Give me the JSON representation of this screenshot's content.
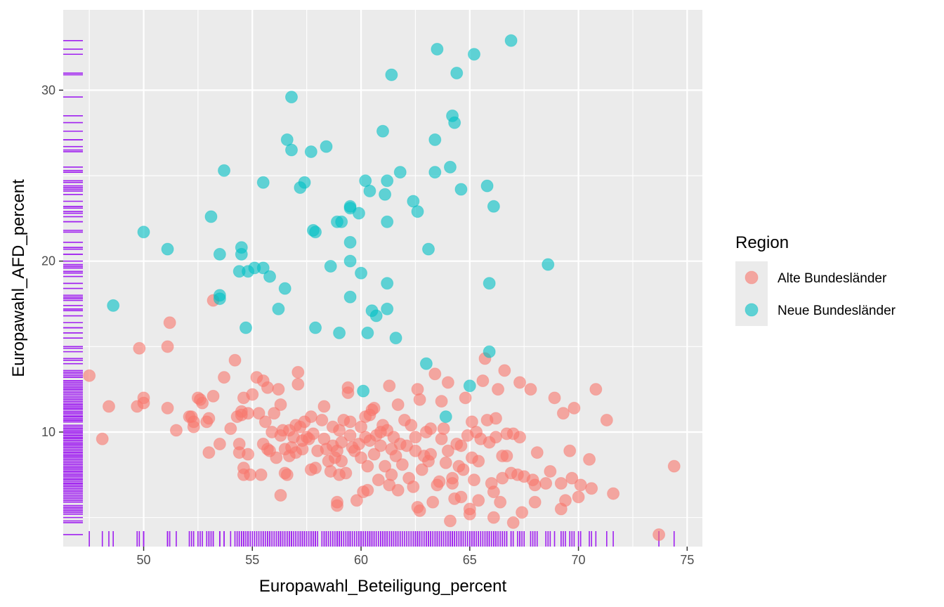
{
  "chart_data": {
    "type": "scatter",
    "xlabel": "Europawahl_Beteiligung_percent",
    "ylabel": "Europawahl_AFD_percent",
    "xlim": [
      46.3,
      75.7
    ],
    "ylim": [
      3.3,
      34.7
    ],
    "x_ticks": [
      50,
      55,
      60,
      65,
      70,
      75
    ],
    "y_ticks": [
      10,
      20,
      30
    ],
    "grid": true,
    "rug": true,
    "rug_color": "#a020f0",
    "panel_background": "#ebebeb",
    "legend": {
      "title": "Region",
      "position": "right"
    },
    "series": [
      {
        "name": "Alte Bundesländer",
        "color": "#f8766d",
        "points": [
          [
            47.5,
            13.3
          ],
          [
            48.1,
            9.6
          ],
          [
            48.4,
            11.5
          ],
          [
            49.8,
            14.9
          ],
          [
            49.7,
            11.5
          ],
          [
            50.0,
            11.7
          ],
          [
            50.0,
            12.0
          ],
          [
            51.1,
            11.4
          ],
          [
            51.1,
            15.0
          ],
          [
            51.2,
            16.4
          ],
          [
            51.5,
            10.1
          ],
          [
            52.1,
            10.9
          ],
          [
            52.2,
            10.9
          ],
          [
            52.3,
            10.3
          ],
          [
            52.3,
            10.6
          ],
          [
            52.5,
            12.0
          ],
          [
            52.6,
            11.9
          ],
          [
            52.7,
            11.7
          ],
          [
            52.9,
            10.6
          ],
          [
            53.0,
            10.8
          ],
          [
            53.2,
            12.1
          ],
          [
            53.2,
            17.7
          ],
          [
            53.0,
            8.8
          ],
          [
            53.5,
            9.3
          ],
          [
            53.7,
            13.2
          ],
          [
            54.0,
            10.2
          ],
          [
            54.2,
            14.2
          ],
          [
            54.3,
            10.9
          ],
          [
            54.4,
            9.3
          ],
          [
            54.4,
            8.8
          ],
          [
            54.5,
            11.2
          ],
          [
            54.5,
            11.0
          ],
          [
            54.6,
            12.0
          ],
          [
            54.6,
            7.9
          ],
          [
            54.6,
            7.5
          ],
          [
            54.8,
            8.7
          ],
          [
            54.8,
            11.1
          ],
          [
            54.9,
            7.5
          ],
          [
            55.0,
            12.2
          ],
          [
            55.2,
            13.2
          ],
          [
            55.3,
            11.1
          ],
          [
            55.4,
            7.5
          ],
          [
            55.5,
            9.3
          ],
          [
            55.5,
            13.0
          ],
          [
            55.6,
            10.6
          ],
          [
            55.7,
            12.6
          ],
          [
            55.7,
            9.0
          ],
          [
            55.8,
            8.9
          ],
          [
            55.9,
            10.0
          ],
          [
            56.0,
            11.1
          ],
          [
            56.1,
            8.5
          ],
          [
            56.2,
            12.5
          ],
          [
            56.3,
            6.3
          ],
          [
            56.3,
            9.8
          ],
          [
            56.3,
            11.6
          ],
          [
            56.4,
            10.1
          ],
          [
            56.5,
            9.0
          ],
          [
            56.5,
            7.6
          ],
          [
            56.6,
            7.5
          ],
          [
            56.7,
            8.6
          ],
          [
            56.7,
            10.1
          ],
          [
            56.8,
            9.1
          ],
          [
            56.9,
            9.7
          ],
          [
            57.0,
            8.8
          ],
          [
            57.0,
            10.4
          ],
          [
            57.1,
            12.8
          ],
          [
            57.1,
            13.5
          ],
          [
            57.2,
            10.3
          ],
          [
            57.3,
            9.5
          ],
          [
            57.3,
            9.0
          ],
          [
            57.4,
            10.6
          ],
          [
            57.5,
            9.7
          ],
          [
            57.6,
            9.6
          ],
          [
            57.7,
            7.8
          ],
          [
            57.7,
            10.9
          ],
          [
            57.8,
            9.9
          ],
          [
            57.9,
            7.9
          ],
          [
            58.0,
            8.9
          ],
          [
            58.2,
            10.7
          ],
          [
            58.3,
            11.5
          ],
          [
            58.3,
            9.6
          ],
          [
            58.4,
            9.0
          ],
          [
            58.5,
            8.3
          ],
          [
            58.6,
            7.7
          ],
          [
            58.7,
            9.2
          ],
          [
            58.7,
            10.3
          ],
          [
            58.8,
            8.5
          ],
          [
            58.9,
            5.7
          ],
          [
            58.9,
            5.9
          ],
          [
            58.9,
            8.9
          ],
          [
            59.0,
            7.5
          ],
          [
            59.0,
            10.1
          ],
          [
            59.1,
            8.3
          ],
          [
            59.1,
            9.4
          ],
          [
            59.2,
            10.7
          ],
          [
            59.3,
            7.6
          ],
          [
            59.4,
            12.3
          ],
          [
            59.4,
            12.6
          ],
          [
            59.5,
            10.6
          ],
          [
            59.5,
            9.8
          ],
          [
            59.6,
            9.1
          ],
          [
            59.7,
            8.9
          ],
          [
            59.8,
            6.0
          ],
          [
            59.9,
            9.3
          ],
          [
            60.0,
            10.3
          ],
          [
            60.0,
            8.5
          ],
          [
            60.1,
            6.5
          ],
          [
            60.2,
            10.9
          ],
          [
            60.2,
            9.7
          ],
          [
            60.3,
            6.6
          ],
          [
            60.3,
            8.0
          ],
          [
            60.4,
            9.5
          ],
          [
            60.4,
            11.0
          ],
          [
            60.5,
            11.3
          ],
          [
            60.6,
            11.4
          ],
          [
            60.6,
            8.7
          ],
          [
            60.7,
            9.8
          ],
          [
            60.8,
            7.2
          ],
          [
            60.9,
            10.0
          ],
          [
            60.9,
            9.2
          ],
          [
            61.0,
            10.4
          ],
          [
            61.1,
            8.0
          ],
          [
            61.2,
            10.1
          ],
          [
            61.3,
            12.7
          ],
          [
            61.3,
            6.9
          ],
          [
            61.4,
            7.5
          ],
          [
            61.4,
            9.0
          ],
          [
            61.5,
            9.7
          ],
          [
            61.6,
            8.6
          ],
          [
            61.7,
            11.6
          ],
          [
            61.7,
            6.6
          ],
          [
            61.8,
            9.3
          ],
          [
            61.9,
            8.1
          ],
          [
            62.0,
            10.7
          ],
          [
            62.1,
            9.2
          ],
          [
            62.2,
            7.3
          ],
          [
            62.3,
            10.4
          ],
          [
            62.4,
            6.8
          ],
          [
            62.5,
            9.7
          ],
          [
            62.5,
            8.9
          ],
          [
            62.6,
            12.5
          ],
          [
            62.6,
            5.6
          ],
          [
            62.7,
            11.9
          ],
          [
            62.7,
            5.4
          ],
          [
            62.8,
            7.8
          ],
          [
            62.9,
            8.6
          ],
          [
            63.0,
            10.0
          ],
          [
            63.1,
            8.3
          ],
          [
            63.2,
            10.2
          ],
          [
            63.2,
            8.7
          ],
          [
            63.3,
            5.9
          ],
          [
            63.4,
            13.4
          ],
          [
            63.5,
            6.9
          ],
          [
            63.6,
            7.1
          ],
          [
            63.7,
            11.8
          ],
          [
            63.7,
            9.6
          ],
          [
            63.8,
            10.2
          ],
          [
            63.9,
            8.2
          ],
          [
            64.0,
            12.9
          ],
          [
            64.0,
            8.9
          ],
          [
            64.1,
            4.8
          ],
          [
            64.2,
            7.0
          ],
          [
            64.2,
            7.3
          ],
          [
            64.3,
            6.1
          ],
          [
            64.4,
            9.3
          ],
          [
            64.5,
            8.0
          ],
          [
            64.6,
            9.2
          ],
          [
            64.6,
            6.2
          ],
          [
            64.7,
            7.8
          ],
          [
            64.8,
            12.0
          ],
          [
            64.9,
            9.8
          ],
          [
            65.0,
            5.2
          ],
          [
            65.0,
            5.5
          ],
          [
            65.1,
            8.5
          ],
          [
            65.1,
            10.6
          ],
          [
            65.2,
            7.2
          ],
          [
            65.3,
            10.0
          ],
          [
            65.4,
            6.0
          ],
          [
            65.4,
            8.3
          ],
          [
            65.5,
            9.6
          ],
          [
            65.6,
            13.0
          ],
          [
            65.7,
            14.3
          ],
          [
            65.8,
            10.7
          ],
          [
            65.9,
            9.4
          ],
          [
            66.0,
            7.0
          ],
          [
            66.1,
            6.5
          ],
          [
            66.1,
            5.0
          ],
          [
            66.2,
            10.8
          ],
          [
            66.2,
            9.7
          ],
          [
            66.3,
            12.5
          ],
          [
            66.4,
            5.9
          ],
          [
            66.5,
            7.3
          ],
          [
            66.5,
            8.6
          ],
          [
            66.6,
            13.6
          ],
          [
            66.7,
            9.9
          ],
          [
            66.7,
            8.6
          ],
          [
            66.9,
            7.6
          ],
          [
            67.0,
            9.9
          ],
          [
            67.0,
            4.7
          ],
          [
            67.2,
            7.5
          ],
          [
            67.3,
            12.9
          ],
          [
            67.3,
            9.7
          ],
          [
            67.4,
            5.3
          ],
          [
            67.5,
            7.4
          ],
          [
            67.8,
            12.5
          ],
          [
            67.9,
            7.2
          ],
          [
            68.0,
            6.9
          ],
          [
            68.0,
            5.9
          ],
          [
            68.1,
            8.8
          ],
          [
            68.5,
            7.0
          ],
          [
            68.7,
            7.7
          ],
          [
            68.9,
            12.0
          ],
          [
            69.2,
            7.0
          ],
          [
            69.2,
            5.5
          ],
          [
            69.3,
            11.1
          ],
          [
            69.4,
            6.0
          ],
          [
            69.6,
            8.9
          ],
          [
            69.7,
            7.3
          ],
          [
            69.8,
            11.4
          ],
          [
            70.0,
            6.2
          ],
          [
            70.1,
            6.9
          ],
          [
            70.5,
            8.4
          ],
          [
            70.6,
            6.7
          ],
          [
            70.8,
            12.5
          ],
          [
            71.3,
            10.7
          ],
          [
            71.6,
            6.4
          ],
          [
            73.7,
            4.0
          ],
          [
            74.4,
            8.0
          ]
        ]
      },
      {
        "name": "Neue Bundesländer",
        "color": "#00bfc4",
        "points": [
          [
            48.6,
            17.4
          ],
          [
            50.0,
            21.7
          ],
          [
            51.1,
            20.7
          ],
          [
            53.1,
            22.6
          ],
          [
            53.5,
            17.8
          ],
          [
            53.5,
            18.0
          ],
          [
            53.5,
            20.4
          ],
          [
            53.7,
            25.3
          ],
          [
            54.4,
            19.4
          ],
          [
            54.5,
            20.8
          ],
          [
            54.5,
            20.4
          ],
          [
            54.7,
            16.1
          ],
          [
            54.8,
            19.4
          ],
          [
            55.1,
            19.6
          ],
          [
            55.5,
            24.6
          ],
          [
            55.5,
            19.6
          ],
          [
            55.8,
            19.1
          ],
          [
            56.2,
            17.2
          ],
          [
            56.5,
            18.4
          ],
          [
            56.6,
            27.1
          ],
          [
            56.8,
            26.5
          ],
          [
            56.8,
            29.6
          ],
          [
            57.2,
            24.3
          ],
          [
            57.4,
            24.6
          ],
          [
            57.7,
            26.4
          ],
          [
            57.8,
            21.8
          ],
          [
            57.9,
            21.7
          ],
          [
            57.9,
            16.1
          ],
          [
            58.4,
            26.7
          ],
          [
            58.6,
            19.7
          ],
          [
            58.9,
            22.3
          ],
          [
            59.0,
            15.8
          ],
          [
            59.1,
            22.3
          ],
          [
            59.5,
            23.2
          ],
          [
            59.5,
            23.1
          ],
          [
            59.5,
            21.1
          ],
          [
            59.5,
            20.0
          ],
          [
            59.5,
            17.9
          ],
          [
            59.9,
            22.8
          ],
          [
            60.0,
            19.3
          ],
          [
            60.1,
            12.4
          ],
          [
            60.2,
            24.7
          ],
          [
            60.3,
            15.8
          ],
          [
            60.4,
            24.1
          ],
          [
            60.5,
            17.1
          ],
          [
            60.7,
            16.8
          ],
          [
            61.0,
            27.6
          ],
          [
            61.1,
            23.9
          ],
          [
            61.2,
            24.7
          ],
          [
            61.2,
            22.3
          ],
          [
            61.2,
            18.7
          ],
          [
            61.2,
            17.2
          ],
          [
            61.4,
            30.9
          ],
          [
            61.6,
            15.5
          ],
          [
            61.8,
            25.2
          ],
          [
            62.4,
            23.5
          ],
          [
            62.6,
            22.9
          ],
          [
            63.0,
            14.0
          ],
          [
            63.1,
            20.7
          ],
          [
            63.4,
            27.1
          ],
          [
            63.4,
            25.2
          ],
          [
            63.5,
            32.4
          ],
          [
            63.9,
            10.9
          ],
          [
            64.1,
            25.5
          ],
          [
            64.2,
            28.5
          ],
          [
            64.3,
            28.1
          ],
          [
            64.4,
            31.0
          ],
          [
            64.6,
            24.2
          ],
          [
            65.0,
            12.7
          ],
          [
            65.2,
            32.1
          ],
          [
            65.8,
            24.4
          ],
          [
            65.9,
            18.7
          ],
          [
            65.9,
            14.7
          ],
          [
            66.1,
            23.2
          ],
          [
            66.9,
            32.9
          ],
          [
            68.6,
            19.8
          ]
        ]
      }
    ]
  }
}
